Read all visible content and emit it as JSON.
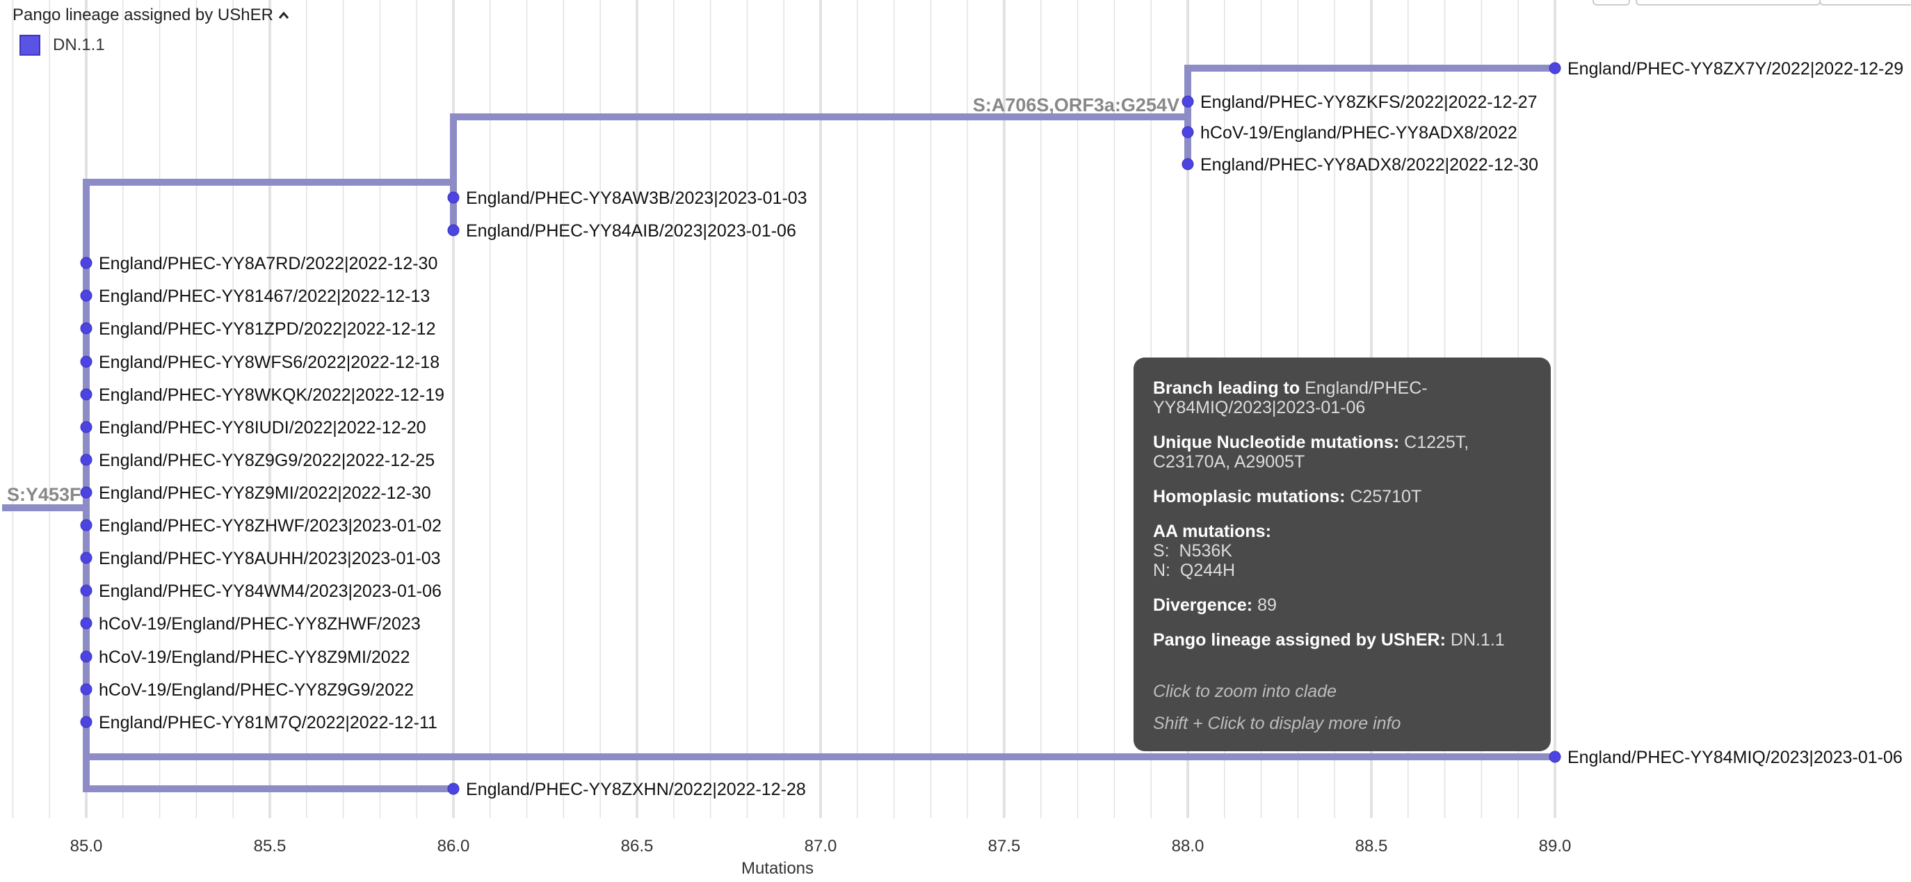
{
  "legend": {
    "title": "Pango lineage assigned by UShER",
    "items": [
      {
        "label": "DN.1.1",
        "color": "#5b52e6"
      }
    ]
  },
  "colors": {
    "branch": "#8e8cc7",
    "node": "#4b44e0",
    "grid": "#e2e2e2",
    "mutation_label": "#888888"
  },
  "chart_data": {
    "type": "phylogenetic-tree",
    "xlabel": "Mutations",
    "xlim": [
      84.8,
      89.0
    ],
    "xticks": [
      85.0,
      85.5,
      86.0,
      86.5,
      87.0,
      87.5,
      88.0,
      88.5,
      89.0
    ],
    "tick_labels": [
      "85.0",
      "85.5",
      "86.0",
      "86.5",
      "87.0",
      "87.5",
      "88.0",
      "88.5",
      "89.0"
    ],
    "mutation_labels": [
      "S:Y453F",
      "S:A706S,ORF3a:G254V"
    ],
    "leaves": [
      {
        "label": "England/PHEC-YY8ZX7Y/2022|2022-12-29",
        "x": 89.0
      },
      {
        "label": "England/PHEC-YY8ZKFS/2022|2022-12-27",
        "x": 88.0
      },
      {
        "label": "hCoV-19/England/PHEC-YY8ADX8/2022",
        "x": 88.0
      },
      {
        "label": "England/PHEC-YY8ADX8/2022|2022-12-30",
        "x": 88.0
      },
      {
        "label": "England/PHEC-YY8AW3B/2023|2023-01-03",
        "x": 86.0
      },
      {
        "label": "England/PHEC-YY84AIB/2023|2023-01-06",
        "x": 86.0
      },
      {
        "label": "England/PHEC-YY8A7RD/2022|2022-12-30",
        "x": 85.0
      },
      {
        "label": "England/PHEC-YY81467/2022|2022-12-13",
        "x": 85.0
      },
      {
        "label": "England/PHEC-YY81ZPD/2022|2022-12-12",
        "x": 85.0
      },
      {
        "label": "England/PHEC-YY8WFS6/2022|2022-12-18",
        "x": 85.0
      },
      {
        "label": "England/PHEC-YY8WKQK/2022|2022-12-19",
        "x": 85.0
      },
      {
        "label": "England/PHEC-YY8IUDI/2022|2022-12-20",
        "x": 85.0
      },
      {
        "label": "England/PHEC-YY8Z9G9/2022|2022-12-25",
        "x": 85.0
      },
      {
        "label": "England/PHEC-YY8Z9MI/2022|2022-12-30",
        "x": 85.0
      },
      {
        "label": "England/PHEC-YY8ZHWF/2023|2023-01-02",
        "x": 85.0
      },
      {
        "label": "England/PHEC-YY8AUHH/2023|2023-01-03",
        "x": 85.0
      },
      {
        "label": "England/PHEC-YY84WM4/2023|2023-01-06",
        "x": 85.0
      },
      {
        "label": "hCoV-19/England/PHEC-YY8ZHWF/2023",
        "x": 85.0
      },
      {
        "label": "hCoV-19/England/PHEC-YY8Z9MI/2022",
        "x": 85.0
      },
      {
        "label": "hCoV-19/England/PHEC-YY8Z9G9/2022",
        "x": 85.0
      },
      {
        "label": "England/PHEC-YY81M7Q/2022|2022-12-11",
        "x": 85.0
      },
      {
        "label": "England/PHEC-YY84MIQ/2023|2023-01-06",
        "x": 89.0
      },
      {
        "label": "England/PHEC-YY8ZXHN/2022|2022-12-28",
        "x": 86.0
      }
    ]
  },
  "tooltip": {
    "branch_key": "Branch leading to",
    "branch_val": "England/PHEC-YY84MIQ/2023|2023-01-06",
    "unique_key": "Unique Nucleotide mutations:",
    "unique_val": "C1225T, C23170A, A29005T",
    "homoplasic_key": "Homoplasic mutations:",
    "homoplasic_val": "C25710T",
    "aa_key": "AA mutations:",
    "aa_s": "S:  N536K",
    "aa_n": "N:  Q244H",
    "divergence_key": "Divergence:",
    "divergence_val": "89",
    "pango_key": "Pango lineage assigned by UShER:",
    "pango_val": "DN.1.1",
    "hint_zoom": "Click to zoom into clade",
    "hint_info": "Shift + Click to display more info"
  }
}
